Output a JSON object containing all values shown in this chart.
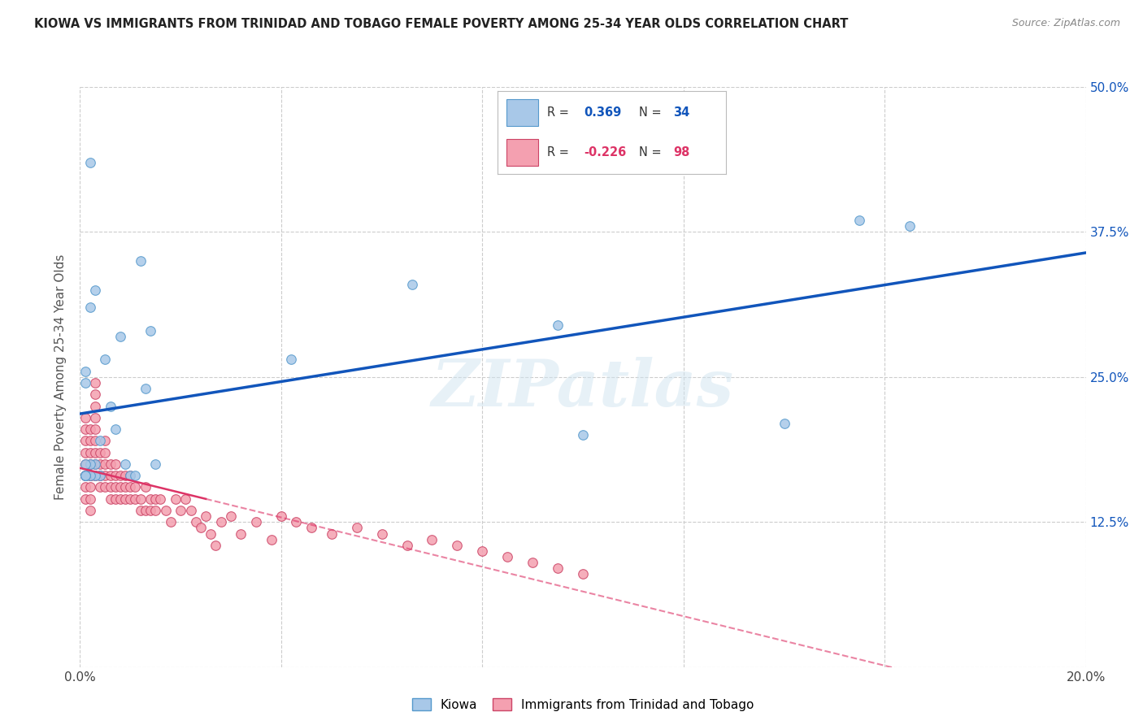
{
  "title": "KIOWA VS IMMIGRANTS FROM TRINIDAD AND TOBAGO FEMALE POVERTY AMONG 25-34 YEAR OLDS CORRELATION CHART",
  "source": "Source: ZipAtlas.com",
  "ylabel": "Female Poverty Among 25-34 Year Olds",
  "xlim": [
    0.0,
    0.2
  ],
  "ylim": [
    0.0,
    0.5
  ],
  "yticks": [
    0.0,
    0.125,
    0.25,
    0.375,
    0.5
  ],
  "yticklabels": [
    "",
    "12.5%",
    "25.0%",
    "37.5%",
    "50.0%"
  ],
  "xtick_positions": [
    0.0,
    0.04,
    0.08,
    0.12,
    0.16,
    0.2
  ],
  "xticklabels": [
    "0.0%",
    "",
    "",
    "",
    "",
    "20.0%"
  ],
  "kiowa_color": "#a8c8e8",
  "kiowa_edge": "#5599cc",
  "tt_color": "#f4a0b0",
  "tt_edge": "#cc4466",
  "blue_line_color": "#1155bb",
  "pink_line_color": "#dd3366",
  "grid_color": "#cccccc",
  "background_color": "#ffffff",
  "watermark": "ZIPatlas",
  "kiowa_x": [
    0.001,
    0.002,
    0.003,
    0.004,
    0.005,
    0.006,
    0.007,
    0.008,
    0.009,
    0.01,
    0.011,
    0.012,
    0.013,
    0.014,
    0.015,
    0.001,
    0.002,
    0.003,
    0.004,
    0.001,
    0.002,
    0.003,
    0.001,
    0.042,
    0.002,
    0.066,
    0.001,
    0.1,
    0.001,
    0.095,
    0.001,
    0.14,
    0.165,
    0.155
  ],
  "kiowa_y": [
    0.245,
    0.435,
    0.325,
    0.195,
    0.265,
    0.225,
    0.205,
    0.285,
    0.175,
    0.165,
    0.165,
    0.35,
    0.24,
    0.29,
    0.175,
    0.255,
    0.31,
    0.175,
    0.165,
    0.165,
    0.175,
    0.165,
    0.165,
    0.265,
    0.165,
    0.33,
    0.175,
    0.2,
    0.165,
    0.295,
    0.165,
    0.21,
    0.38,
    0.385
  ],
  "tt_x": [
    0.001,
    0.001,
    0.001,
    0.001,
    0.001,
    0.001,
    0.001,
    0.001,
    0.001,
    0.001,
    0.002,
    0.002,
    0.002,
    0.002,
    0.002,
    0.002,
    0.002,
    0.002,
    0.002,
    0.002,
    0.003,
    0.003,
    0.003,
    0.003,
    0.003,
    0.003,
    0.003,
    0.003,
    0.003,
    0.003,
    0.004,
    0.004,
    0.004,
    0.004,
    0.004,
    0.005,
    0.005,
    0.005,
    0.005,
    0.005,
    0.006,
    0.006,
    0.006,
    0.006,
    0.007,
    0.007,
    0.007,
    0.007,
    0.008,
    0.008,
    0.008,
    0.009,
    0.009,
    0.009,
    0.01,
    0.01,
    0.01,
    0.011,
    0.011,
    0.012,
    0.012,
    0.013,
    0.013,
    0.014,
    0.014,
    0.015,
    0.015,
    0.016,
    0.017,
    0.018,
    0.019,
    0.02,
    0.021,
    0.022,
    0.023,
    0.024,
    0.025,
    0.026,
    0.027,
    0.028,
    0.03,
    0.032,
    0.035,
    0.038,
    0.04,
    0.043,
    0.046,
    0.05,
    0.055,
    0.06,
    0.065,
    0.07,
    0.075,
    0.08,
    0.085,
    0.09,
    0.095,
    0.1
  ],
  "tt_y": [
    0.165,
    0.165,
    0.175,
    0.185,
    0.195,
    0.205,
    0.215,
    0.165,
    0.155,
    0.145,
    0.165,
    0.175,
    0.185,
    0.195,
    0.205,
    0.165,
    0.155,
    0.145,
    0.135,
    0.165,
    0.165,
    0.175,
    0.185,
    0.195,
    0.205,
    0.215,
    0.225,
    0.235,
    0.245,
    0.165,
    0.165,
    0.175,
    0.185,
    0.165,
    0.155,
    0.165,
    0.175,
    0.185,
    0.195,
    0.155,
    0.165,
    0.175,
    0.155,
    0.145,
    0.165,
    0.175,
    0.155,
    0.145,
    0.165,
    0.155,
    0.145,
    0.165,
    0.155,
    0.145,
    0.165,
    0.155,
    0.145,
    0.155,
    0.145,
    0.145,
    0.135,
    0.155,
    0.135,
    0.145,
    0.135,
    0.145,
    0.135,
    0.145,
    0.135,
    0.125,
    0.145,
    0.135,
    0.145,
    0.135,
    0.125,
    0.12,
    0.13,
    0.115,
    0.105,
    0.125,
    0.13,
    0.115,
    0.125,
    0.11,
    0.13,
    0.125,
    0.12,
    0.115,
    0.12,
    0.115,
    0.105,
    0.11,
    0.105,
    0.1,
    0.095,
    0.09,
    0.085,
    0.08
  ]
}
